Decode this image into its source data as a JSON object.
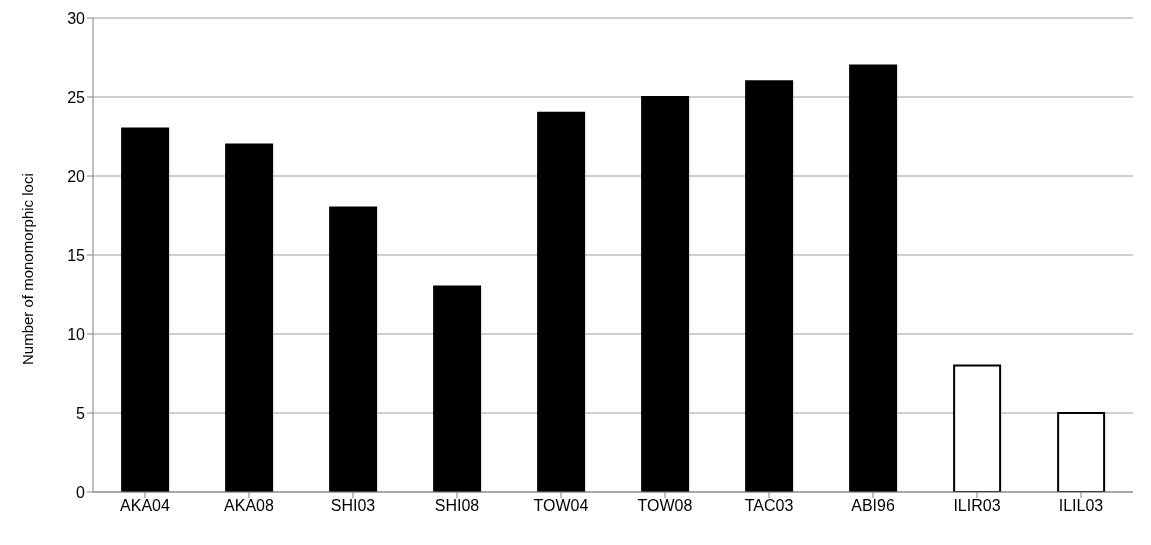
{
  "chart_data": {
    "type": "bar",
    "ylabel": "Number of monomorphic loci",
    "categories": [
      "AKA04",
      "AKA08",
      "SHI03",
      "SHI08",
      "TOW04",
      "TOW08",
      "TAC03",
      "ABI96",
      "ILIR03",
      "ILIL03"
    ],
    "values": [
      23,
      22,
      18,
      13,
      24,
      25,
      26,
      27,
      8,
      5
    ],
    "colors": [
      "#000000",
      "#000000",
      "#000000",
      "#000000",
      "#000000",
      "#000000",
      "#000000",
      "#000000",
      "#ffffff",
      "#ffffff"
    ],
    "ylim": [
      0,
      30
    ],
    "yticks": [
      0,
      5,
      10,
      15,
      20,
      25,
      30
    ],
    "grid": "y",
    "legend": false
  }
}
